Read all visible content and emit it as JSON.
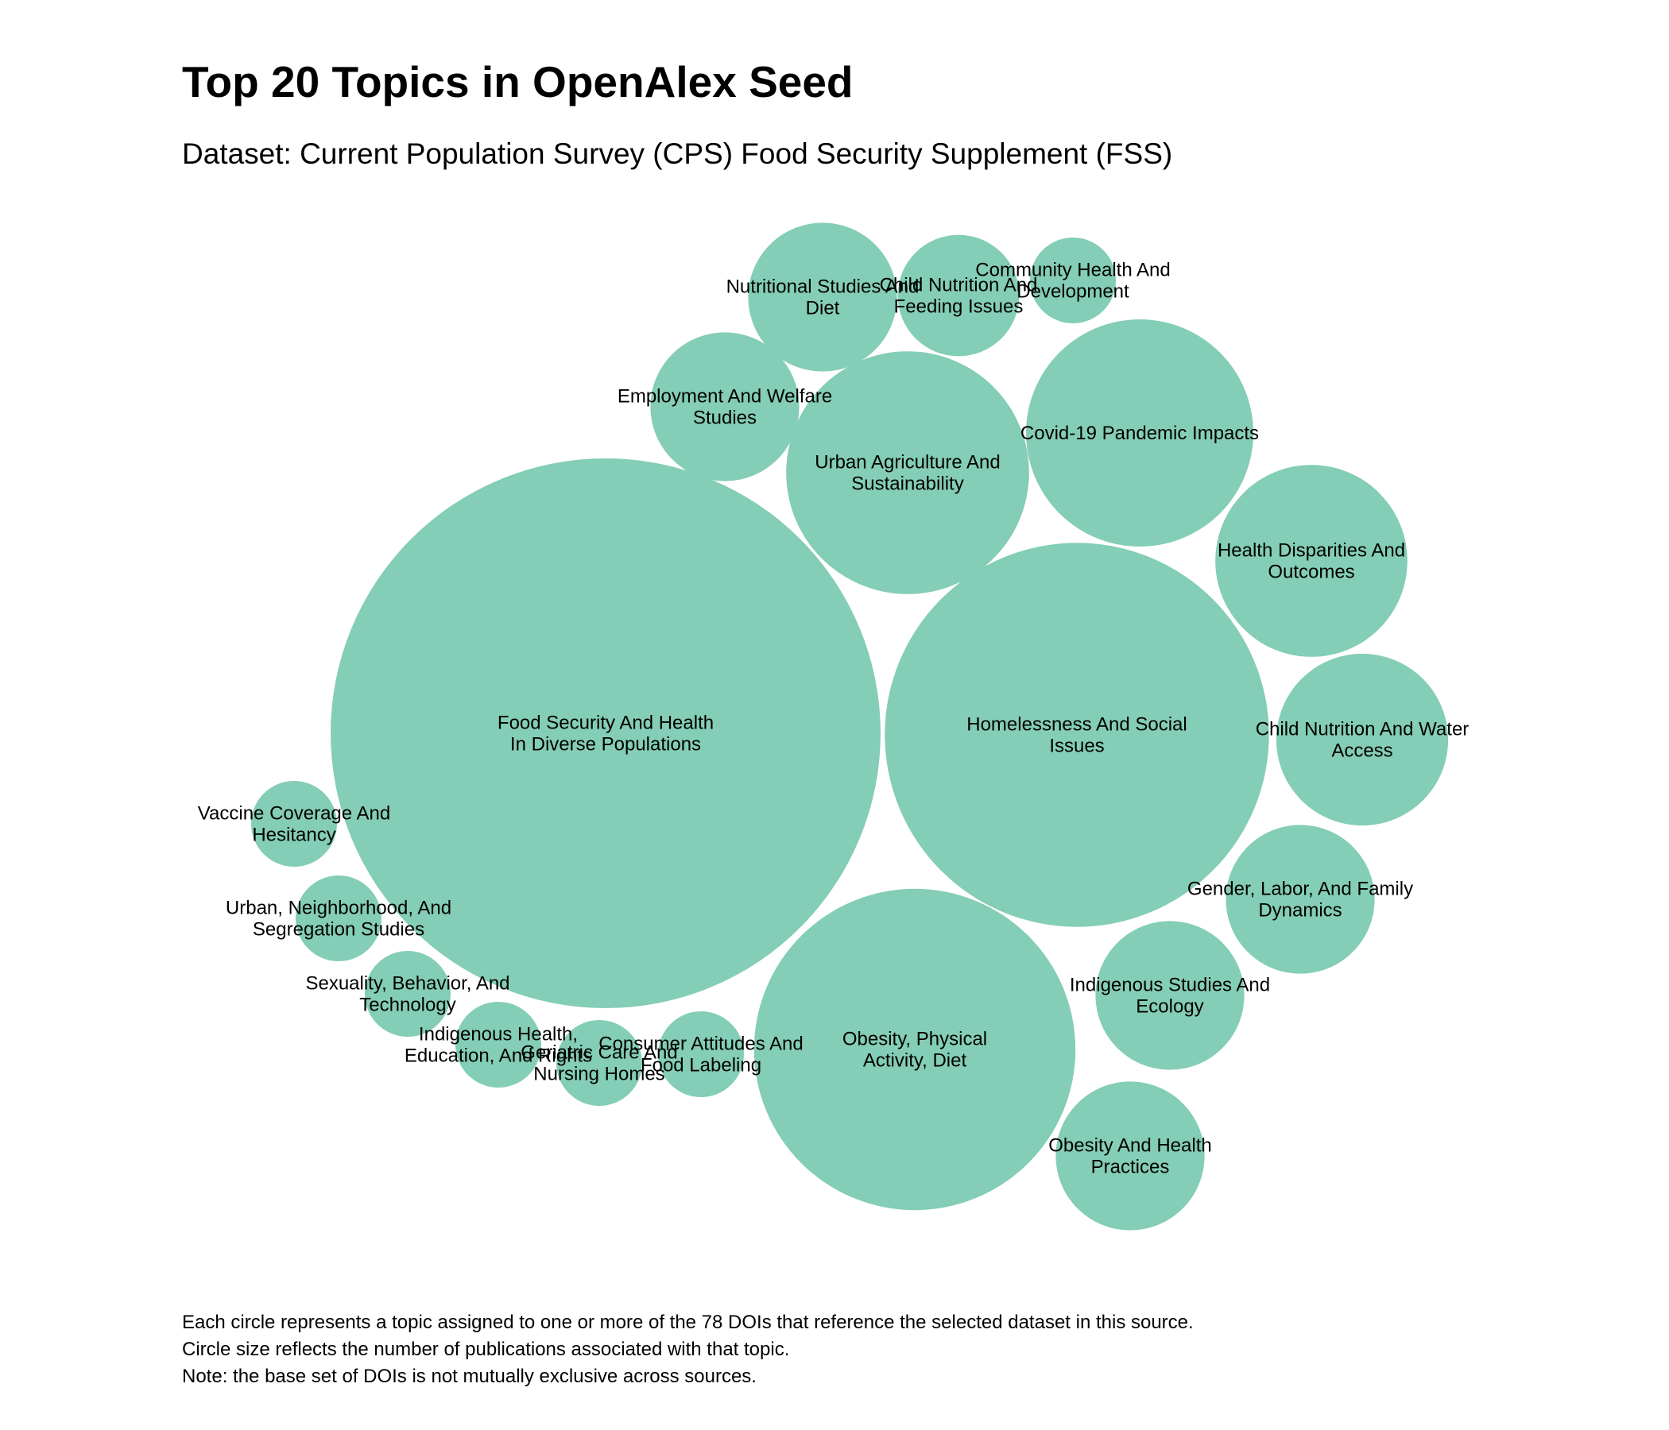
{
  "chart_data": {
    "type": "bubble",
    "title": "Top 20 Topics in OpenAlex Seed",
    "subtitle": "Dataset: Current Population Survey (CPS) Food Security Supplement (FSS)",
    "bubble_color": "#84cdb6",
    "size_unit": "publications",
    "topics": [
      {
        "label_lines": [
          "Food Security And Health",
          "In Diverse Populations"
        ],
        "value": 41
      },
      {
        "label_lines": [
          "Homelessness And Social",
          "Issues"
        ],
        "value": 20
      },
      {
        "label_lines": [
          "Obesity, Physical",
          "Activity, Diet"
        ],
        "value": 14
      },
      {
        "label_lines": [
          "Urban Agriculture And",
          "Sustainability"
        ],
        "value": 8
      },
      {
        "label_lines": [
          "Covid-19 Pandemic Impacts"
        ],
        "value": 7
      },
      {
        "label_lines": [
          "Health Disparities And",
          "Outcomes"
        ],
        "value": 5
      },
      {
        "label_lines": [
          "Child Nutrition And Water",
          "Access"
        ],
        "value": 4
      },
      {
        "label_lines": [
          "Employment And Welfare",
          "Studies"
        ],
        "value": 3
      },
      {
        "label_lines": [
          "Nutritional Studies And",
          "Diet"
        ],
        "value": 3
      },
      {
        "label_lines": [
          "Gender, Labor, And Family",
          "Dynamics"
        ],
        "value": 3
      },
      {
        "label_lines": [
          "Indigenous Studies And",
          "Ecology"
        ],
        "value": 3
      },
      {
        "label_lines": [
          "Obesity And Health",
          "Practices"
        ],
        "value": 3
      },
      {
        "label_lines": [
          "Child Nutrition And",
          "Feeding Issues"
        ],
        "value": 2
      },
      {
        "label_lines": [
          "Consumer Attitudes And",
          "Food Labeling"
        ],
        "value": 1
      },
      {
        "label_lines": [
          "Community Health And",
          "Development"
        ],
        "value": 1
      },
      {
        "label_lines": [
          "Vaccine Coverage And",
          "Hesitancy"
        ],
        "value": 1
      },
      {
        "label_lines": [
          "Urban, Neighborhood, And",
          "Segregation Studies"
        ],
        "value": 1
      },
      {
        "label_lines": [
          "Sexuality, Behavior, And",
          "Technology"
        ],
        "value": 1
      },
      {
        "label_lines": [
          "Geriatric Care And",
          "Nursing Homes"
        ],
        "value": 1
      },
      {
        "label_lines": [
          "Indigenous Health,",
          "Education, And Rights"
        ],
        "value": 1
      }
    ]
  },
  "notes": [
    "Each circle represents a topic assigned to one or more of the 78 DOIs that reference the selected dataset in this source.",
    "Circle size reflects the number of publications associated with that topic.",
    "Note: the base set of DOIs is not mutually exclusive across sources."
  ]
}
